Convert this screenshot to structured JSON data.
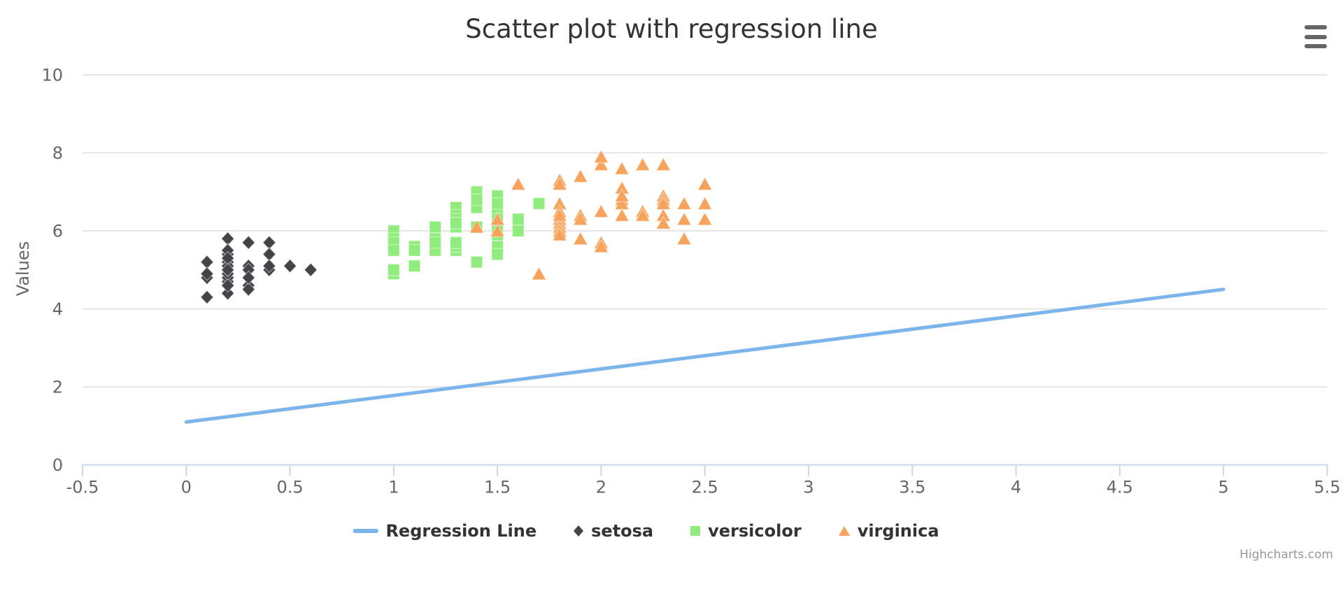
{
  "header": {
    "title": "Scatter plot with regression line"
  },
  "toolbar": {
    "menu_icon": "hamburger-menu-icon"
  },
  "y_axis": {
    "title": "Values",
    "tick_values": [
      0,
      2,
      4,
      6,
      8,
      10
    ],
    "tick_labels": [
      "0",
      "2",
      "4",
      "6",
      "8",
      "10"
    ]
  },
  "x_axis": {
    "tick_values": [
      -0.5,
      0,
      0.5,
      1,
      1.5,
      2,
      2.5,
      3,
      3.5,
      4,
      4.5,
      5,
      5.5
    ],
    "tick_labels": [
      "-0.5",
      "0",
      "0.5",
      "1",
      "1.5",
      "2",
      "2.5",
      "3",
      "3.5",
      "4",
      "4.5",
      "5",
      "5.5"
    ]
  },
  "legend": {
    "items": [
      {
        "label": "Regression Line",
        "symbol": "line",
        "color": "#7cb5ec"
      },
      {
        "label": "setosa",
        "symbol": "diamond",
        "color": "#434348"
      },
      {
        "label": "versicolor",
        "symbol": "square",
        "color": "#90ed7d"
      },
      {
        "label": "virginica",
        "symbol": "triangle",
        "color": "#f7a35c"
      }
    ]
  },
  "credits": {
    "label": "Highcharts.com"
  },
  "colors": {
    "grid_line": "#e6e6e6",
    "axis_line": "#ccd6eb",
    "tick_label": "#666666",
    "title_text": "#333333",
    "legend_text": "#333333",
    "credits_text": "#999999"
  },
  "chart_data": {
    "type": "scatter",
    "title": "Scatter plot with regression line",
    "xlabel": "",
    "ylabel": "Values",
    "xlim": [
      -0.5,
      5.5
    ],
    "ylim": [
      0,
      10
    ],
    "grid": true,
    "legend_position": "bottom",
    "series": [
      {
        "name": "Regression Line",
        "type": "line",
        "color": "#7cb5ec",
        "points": [
          [
            0,
            1.1
          ],
          [
            5,
            4.5
          ]
        ]
      },
      {
        "name": "setosa",
        "type": "scatter",
        "marker": "diamond",
        "color": "#434348",
        "points": [
          [
            0.2,
            5.1
          ],
          [
            0.2,
            4.9
          ],
          [
            0.2,
            4.7
          ],
          [
            0.2,
            4.6
          ],
          [
            0.2,
            5.0
          ],
          [
            0.4,
            5.4
          ],
          [
            0.3,
            4.6
          ],
          [
            0.2,
            5.0
          ],
          [
            0.2,
            4.4
          ],
          [
            0.1,
            4.9
          ],
          [
            0.2,
            5.4
          ],
          [
            0.2,
            4.8
          ],
          [
            0.1,
            4.8
          ],
          [
            0.1,
            4.3
          ],
          [
            0.2,
            5.8
          ],
          [
            0.4,
            5.7
          ],
          [
            0.4,
            5.4
          ],
          [
            0.3,
            5.1
          ],
          [
            0.3,
            5.7
          ],
          [
            0.3,
            5.1
          ],
          [
            0.2,
            5.4
          ],
          [
            0.4,
            5.1
          ],
          [
            0.2,
            4.6
          ],
          [
            0.5,
            5.1
          ],
          [
            0.2,
            4.8
          ],
          [
            0.2,
            5.0
          ],
          [
            0.4,
            5.0
          ],
          [
            0.2,
            5.2
          ],
          [
            0.2,
            5.2
          ],
          [
            0.2,
            4.7
          ],
          [
            0.2,
            4.8
          ],
          [
            0.4,
            5.4
          ],
          [
            0.1,
            5.2
          ],
          [
            0.2,
            5.5
          ],
          [
            0.2,
            4.9
          ],
          [
            0.2,
            5.0
          ],
          [
            0.2,
            5.5
          ],
          [
            0.1,
            4.9
          ],
          [
            0.2,
            4.4
          ],
          [
            0.2,
            5.1
          ],
          [
            0.3,
            5.0
          ],
          [
            0.3,
            4.5
          ],
          [
            0.2,
            4.4
          ],
          [
            0.6,
            5.0
          ],
          [
            0.4,
            5.1
          ],
          [
            0.3,
            4.8
          ],
          [
            0.2,
            5.1
          ],
          [
            0.2,
            4.6
          ],
          [
            0.2,
            5.3
          ],
          [
            0.2,
            5.0
          ]
        ]
      },
      {
        "name": "versicolor",
        "type": "scatter",
        "marker": "square",
        "color": "#90ed7d",
        "points": [
          [
            1.4,
            7.0
          ],
          [
            1.5,
            6.4
          ],
          [
            1.5,
            6.9
          ],
          [
            1.3,
            5.5
          ],
          [
            1.5,
            6.5
          ],
          [
            1.3,
            5.7
          ],
          [
            1.6,
            6.3
          ],
          [
            1.0,
            4.9
          ],
          [
            1.3,
            6.6
          ],
          [
            1.4,
            5.2
          ],
          [
            1.0,
            5.0
          ],
          [
            1.5,
            5.9
          ],
          [
            1.0,
            6.0
          ],
          [
            1.4,
            6.1
          ],
          [
            1.3,
            5.6
          ],
          [
            1.4,
            6.7
          ],
          [
            1.5,
            5.6
          ],
          [
            1.0,
            5.8
          ],
          [
            1.5,
            6.2
          ],
          [
            1.1,
            5.6
          ],
          [
            1.8,
            5.9
          ],
          [
            1.3,
            6.1
          ],
          [
            1.5,
            6.3
          ],
          [
            1.2,
            6.1
          ],
          [
            1.3,
            6.4
          ],
          [
            1.4,
            6.6
          ],
          [
            1.4,
            6.8
          ],
          [
            1.7,
            6.7
          ],
          [
            1.5,
            6.0
          ],
          [
            1.0,
            5.7
          ],
          [
            1.1,
            5.5
          ],
          [
            1.0,
            5.5
          ],
          [
            1.2,
            5.8
          ],
          [
            1.6,
            6.0
          ],
          [
            1.5,
            5.4
          ],
          [
            1.6,
            6.0
          ],
          [
            1.5,
            6.7
          ],
          [
            1.3,
            6.3
          ],
          [
            1.3,
            5.6
          ],
          [
            1.3,
            5.5
          ],
          [
            1.2,
            5.5
          ],
          [
            1.4,
            6.1
          ],
          [
            1.2,
            5.8
          ],
          [
            1.0,
            5.0
          ],
          [
            1.3,
            5.6
          ],
          [
            1.2,
            5.7
          ],
          [
            1.3,
            5.7
          ],
          [
            1.3,
            6.2
          ],
          [
            1.1,
            5.1
          ],
          [
            1.3,
            5.7
          ]
        ]
      },
      {
        "name": "virginica",
        "type": "scatter",
        "marker": "triangle",
        "color": "#f7a35c",
        "points": [
          [
            2.5,
            6.3
          ],
          [
            1.9,
            5.8
          ],
          [
            2.1,
            7.1
          ],
          [
            1.8,
            6.3
          ],
          [
            2.2,
            6.5
          ],
          [
            2.1,
            7.6
          ],
          [
            1.7,
            4.9
          ],
          [
            1.8,
            7.3
          ],
          [
            1.8,
            6.7
          ],
          [
            2.5,
            7.2
          ],
          [
            2.0,
            6.5
          ],
          [
            1.9,
            6.4
          ],
          [
            2.1,
            6.8
          ],
          [
            2.0,
            5.7
          ],
          [
            2.4,
            5.8
          ],
          [
            2.3,
            6.4
          ],
          [
            1.8,
            6.5
          ],
          [
            2.2,
            7.7
          ],
          [
            2.3,
            7.7
          ],
          [
            1.5,
            6.0
          ],
          [
            2.3,
            6.9
          ],
          [
            2.0,
            5.6
          ],
          [
            2.0,
            7.7
          ],
          [
            1.8,
            6.3
          ],
          [
            2.1,
            6.7
          ],
          [
            1.8,
            7.2
          ],
          [
            1.8,
            6.2
          ],
          [
            1.8,
            6.1
          ],
          [
            2.1,
            6.4
          ],
          [
            1.6,
            7.2
          ],
          [
            1.9,
            7.4
          ],
          [
            2.0,
            7.9
          ],
          [
            2.2,
            6.4
          ],
          [
            1.5,
            6.3
          ],
          [
            1.4,
            6.1
          ],
          [
            2.3,
            7.7
          ],
          [
            2.4,
            6.3
          ],
          [
            1.8,
            6.4
          ],
          [
            1.8,
            6.0
          ],
          [
            2.1,
            6.9
          ],
          [
            2.4,
            6.7
          ],
          [
            2.3,
            6.9
          ],
          [
            1.9,
            5.8
          ],
          [
            2.3,
            6.8
          ],
          [
            2.5,
            6.7
          ],
          [
            2.3,
            6.7
          ],
          [
            1.9,
            6.3
          ],
          [
            2.0,
            6.5
          ],
          [
            2.3,
            6.2
          ],
          [
            1.8,
            5.9
          ]
        ]
      }
    ]
  }
}
